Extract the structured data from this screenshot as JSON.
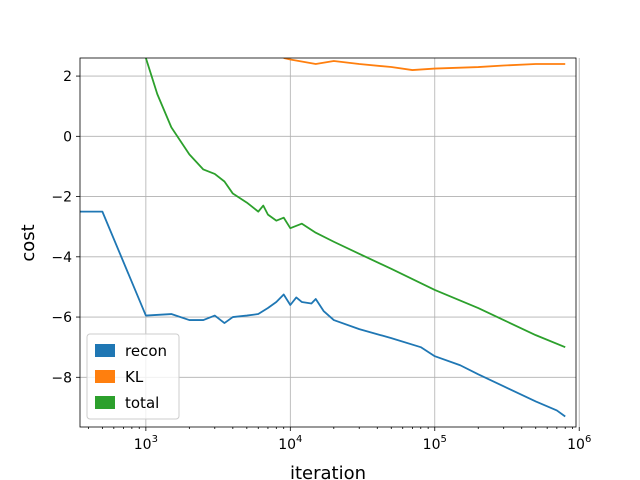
{
  "chart_data": {
    "type": "line",
    "xlabel": "iteration",
    "ylabel": "cost",
    "xscale": "log",
    "xlim": [
      350,
      950000
    ],
    "ylim": [
      -9.65,
      2.6
    ],
    "grid": true,
    "legend_position": "lower-left",
    "x_ticks": [
      {
        "value": 1000,
        "base": "10",
        "exp": "3"
      },
      {
        "value": 10000,
        "base": "10",
        "exp": "4"
      },
      {
        "value": 100000,
        "base": "10",
        "exp": "5"
      },
      {
        "value": 1000000,
        "base": "10",
        "exp": "6"
      }
    ],
    "y_ticks": [
      {
        "value": 2,
        "label": "2"
      },
      {
        "value": 0,
        "label": "0"
      },
      {
        "value": -2,
        "label": "−2"
      },
      {
        "value": -4,
        "label": "−4"
      },
      {
        "value": -6,
        "label": "−6"
      },
      {
        "value": -8,
        "label": "−8"
      }
    ],
    "series": [
      {
        "name": "recon",
        "color": "#1f77b4",
        "x": [
          350,
          500,
          1000,
          1500,
          2000,
          2500,
          3000,
          3500,
          4000,
          5000,
          6000,
          7000,
          8000,
          9000,
          10000,
          11000,
          12000,
          14000,
          15000,
          17000,
          20000,
          30000,
          50000,
          80000,
          100000,
          150000,
          200000,
          300000,
          500000,
          700000,
          800000
        ],
        "y": [
          -2.5,
          -2.5,
          -5.95,
          -5.9,
          -6.1,
          -6.1,
          -5.95,
          -6.2,
          -6.0,
          -5.95,
          -5.9,
          -5.7,
          -5.5,
          -5.25,
          -5.6,
          -5.35,
          -5.5,
          -5.55,
          -5.4,
          -5.8,
          -6.1,
          -6.4,
          -6.7,
          -7.0,
          -7.3,
          -7.6,
          -7.9,
          -8.3,
          -8.8,
          -9.1,
          -9.3
        ]
      },
      {
        "name": "KL",
        "color": "#ff7f0e",
        "x": [
          9000,
          10000,
          15000,
          20000,
          30000,
          50000,
          70000,
          100000,
          200000,
          300000,
          500000,
          800000
        ],
        "y": [
          2.6,
          2.55,
          2.4,
          2.5,
          2.4,
          2.3,
          2.2,
          2.25,
          2.3,
          2.35,
          2.4,
          2.4
        ]
      },
      {
        "name": "total",
        "color": "#2ca02c",
        "x": [
          1000,
          1200,
          1500,
          2000,
          2500,
          3000,
          3500,
          4000,
          5000,
          6000,
          6500,
          7000,
          8000,
          9000,
          10000,
          12000,
          15000,
          20000,
          30000,
          50000,
          100000,
          200000,
          300000,
          500000,
          800000
        ],
        "y": [
          2.6,
          1.4,
          0.3,
          -0.6,
          -1.1,
          -1.25,
          -1.5,
          -1.9,
          -2.2,
          -2.5,
          -2.3,
          -2.6,
          -2.8,
          -2.7,
          -3.05,
          -2.9,
          -3.2,
          -3.5,
          -3.9,
          -4.4,
          -5.1,
          -5.7,
          -6.1,
          -6.6,
          -7.0
        ]
      }
    ]
  }
}
